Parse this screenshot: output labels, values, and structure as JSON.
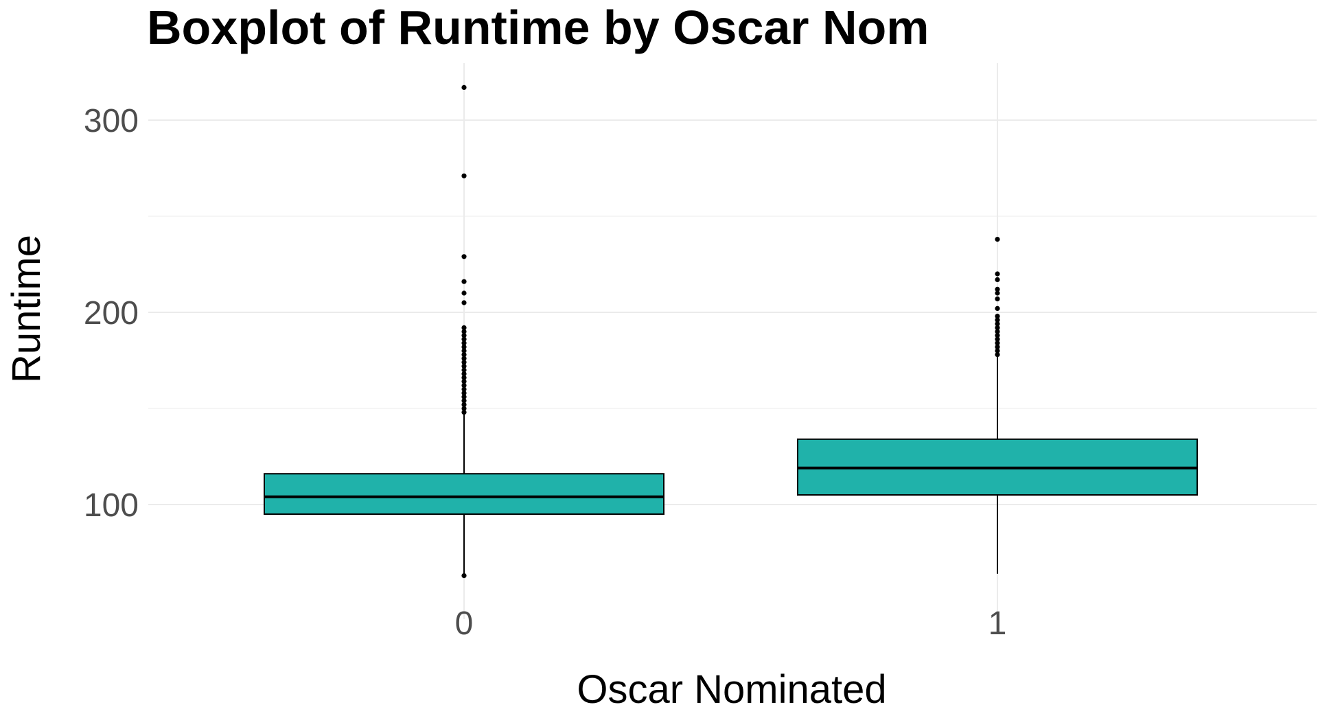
{
  "chart_data": {
    "type": "boxplot",
    "title": "Boxplot of Runtime by Oscar Nom",
    "xlabel": "Oscar Nominated",
    "ylabel": "Runtime",
    "categories": [
      "0",
      "1"
    ],
    "ylim": [
      49,
      328
    ],
    "y_major_ticks": [
      100,
      200,
      300
    ],
    "y_minor_ticks": [
      150,
      250
    ],
    "y_tick_labels": [
      "100",
      "200",
      "300"
    ],
    "grid": true,
    "fill_color": "#20b2aa",
    "boxes": [
      {
        "category": "0",
        "whisker_low": 63,
        "q1": 95,
        "median": 104,
        "q3": 116,
        "whisker_high": 148,
        "outliers": [
          63,
          148,
          150,
          152,
          154,
          156,
          158,
          160,
          162,
          164,
          166,
          168,
          170,
          172,
          174,
          176,
          178,
          180,
          182,
          184,
          186,
          188,
          190,
          192,
          205,
          210,
          216,
          229,
          271,
          317
        ]
      },
      {
        "category": "1",
        "whisker_low": 64,
        "q1": 105,
        "median": 119,
        "q3": 134,
        "whisker_high": 177,
        "outliers": [
          178,
          180,
          182,
          184,
          186,
          188,
          190,
          192,
          194,
          196,
          198,
          202,
          207,
          210,
          212,
          217,
          220,
          238
        ]
      }
    ]
  }
}
